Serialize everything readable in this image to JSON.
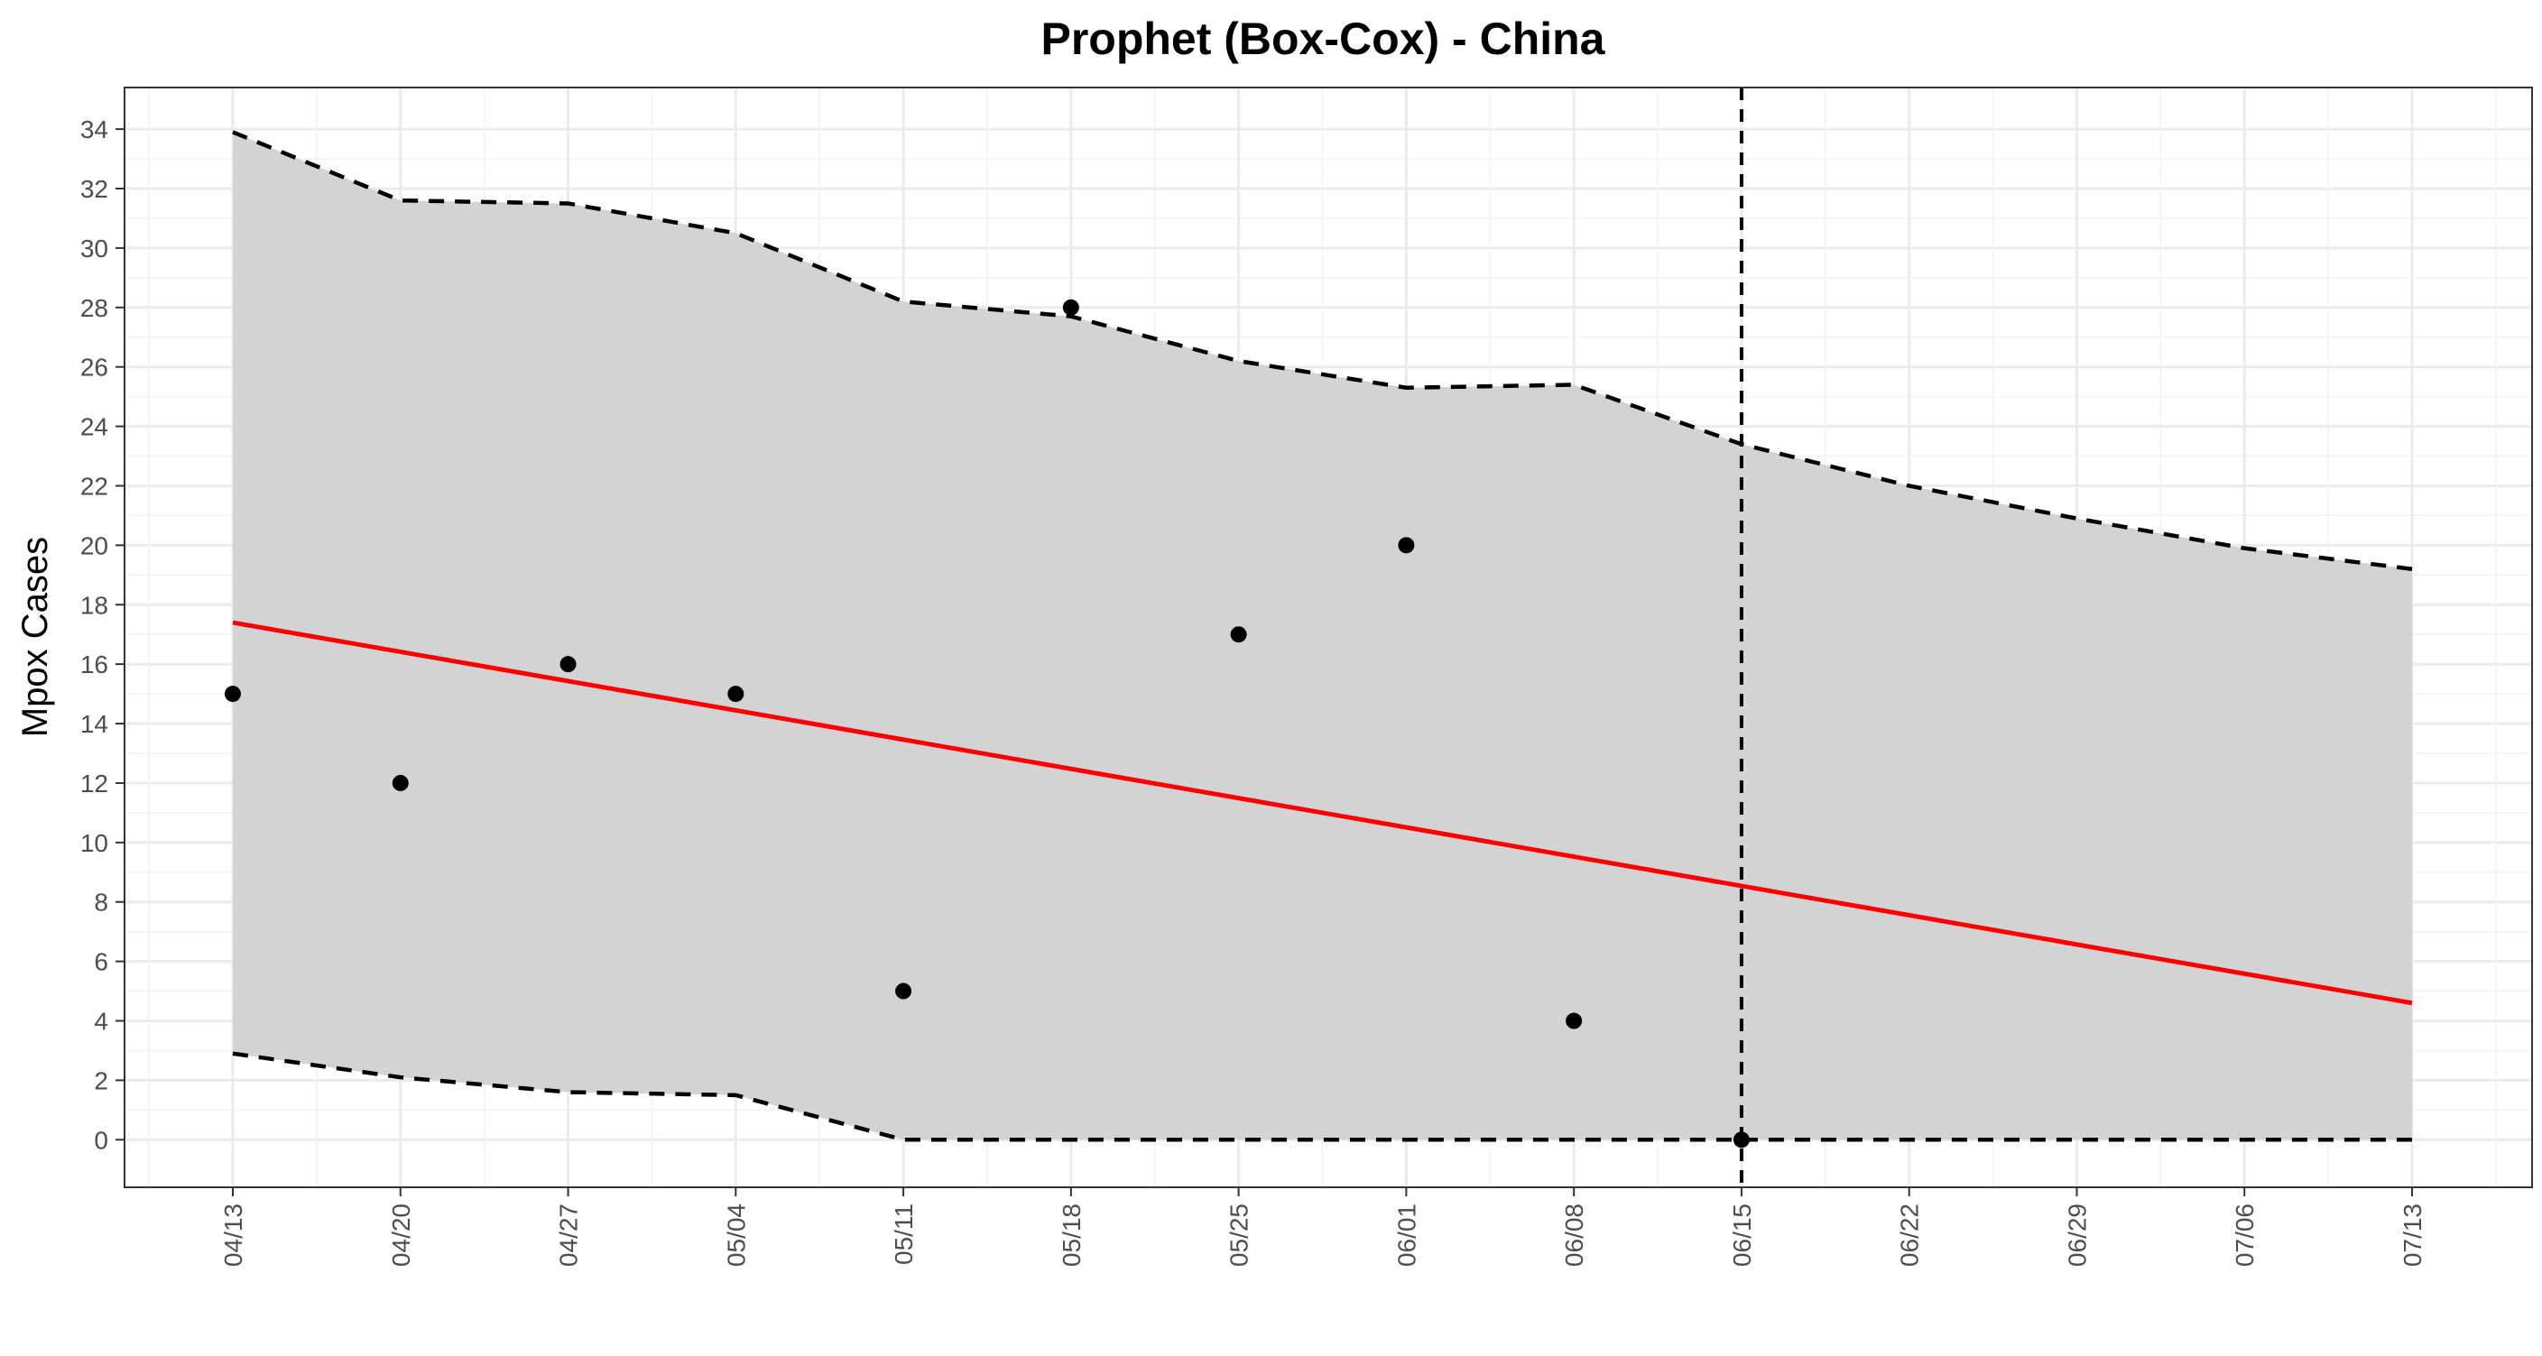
{
  "chart_data": {
    "type": "line",
    "title": "Prophet (Box-Cox) - China",
    "xlabel": "",
    "ylabel": "Mpox Cases",
    "x_tick_labels": [
      "04/13",
      "04/20",
      "04/27",
      "05/04",
      "05/11",
      "05/18",
      "05/25",
      "06/01",
      "06/08",
      "06/15",
      "06/22",
      "06/29",
      "07/06",
      "07/13"
    ],
    "ylim": [
      -1.6,
      35.4
    ],
    "y_ticks": [
      0,
      2,
      4,
      6,
      8,
      10,
      12,
      14,
      16,
      18,
      20,
      22,
      24,
      26,
      28,
      30,
      32,
      34
    ],
    "grid": true,
    "vline_x_index": 9,
    "vline_label": "06/15",
    "series": [
      {
        "kind": "interval_band",
        "x_index": [
          0,
          1,
          2,
          3,
          4,
          5,
          6,
          7,
          8,
          9,
          10,
          11,
          12,
          13
        ],
        "upper": [
          33.9,
          31.6,
          31.5,
          30.5,
          28.2,
          27.7,
          26.2,
          25.3,
          25.4,
          23.4,
          22.0,
          20.9,
          19.9,
          19.2
        ],
        "lower": [
          2.9,
          2.1,
          1.6,
          1.5,
          0,
          0,
          0,
          0,
          0,
          0,
          0,
          0,
          0,
          0
        ],
        "fill": "#d3d3d3",
        "line_color": "#000000",
        "line_style": "dashed"
      },
      {
        "kind": "line",
        "x_index": [
          0,
          13
        ],
        "values": [
          17.4,
          4.6
        ],
        "color": "#ff0000"
      },
      {
        "kind": "points",
        "x_index": [
          0,
          1,
          2,
          3,
          4,
          5,
          6,
          7,
          8,
          9
        ],
        "values": [
          15,
          12,
          16,
          15,
          5,
          28,
          17,
          20,
          4,
          0
        ],
        "color": "#000000"
      }
    ]
  }
}
